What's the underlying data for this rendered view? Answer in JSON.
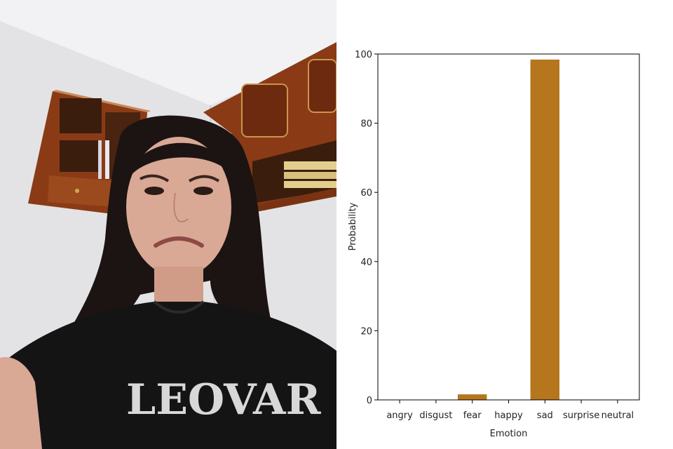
{
  "photo": {
    "shirt_text": "LEOVAR"
  },
  "colors": {
    "bar": "#b5761d",
    "axis": "#000000"
  },
  "chart_data": {
    "type": "bar",
    "categories": [
      "angry",
      "disgust",
      "fear",
      "happy",
      "sad",
      "surprise",
      "neutral"
    ],
    "values": [
      0,
      0,
      1.6,
      0,
      98.4,
      0,
      0
    ],
    "xlabel": "Emotion",
    "ylabel": "Probability",
    "ylim": [
      0,
      100
    ],
    "yticks": [
      0,
      20,
      40,
      60,
      80,
      100
    ],
    "grid": false
  }
}
